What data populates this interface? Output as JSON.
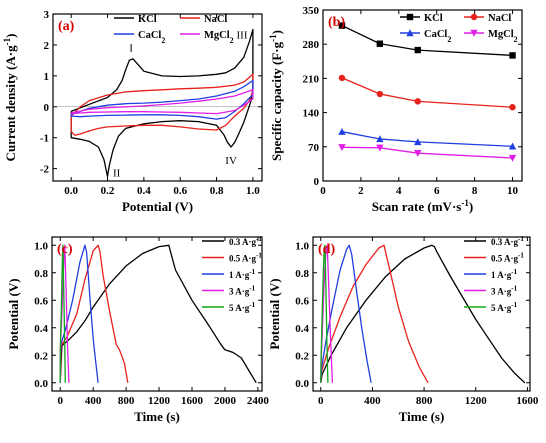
{
  "chart_data": [
    {
      "id": "a",
      "type": "line",
      "panel_label": "(a)",
      "xlabel": "Potential (V)",
      "ylabel": "Current density (A·g",
      "ylabel_sup": "-1",
      "ylabel_close": ")",
      "xlim": [
        -0.1,
        1.05
      ],
      "ylim": [
        -2.4,
        3.0
      ],
      "xticks": [
        0.0,
        0.2,
        0.4,
        0.6,
        0.8,
        1.0
      ],
      "xtick_labels": [
        "0.0",
        "0.2",
        "0.4",
        "0.6",
        "0.8",
        "1.0"
      ],
      "yticks": [
        -2,
        -1,
        0,
        1,
        2,
        3
      ],
      "ytick_labels": [
        "-2",
        "-1",
        "0",
        "1",
        "2",
        "3"
      ],
      "annotations": [
        {
          "text": "I",
          "x": 0.33,
          "y": 1.78
        },
        {
          "text": "II",
          "x": 0.25,
          "y": -2.25
        },
        {
          "text": "III",
          "x": 0.94,
          "y": 2.2
        },
        {
          "text": "IV",
          "x": 0.88,
          "y": -1.85
        }
      ],
      "legend_entries": [
        {
          "label": "KCl",
          "color": "#000000"
        },
        {
          "label": "NaCl",
          "color": "#e8211b"
        },
        {
          "label": "CaCl",
          "sub": "2",
          "color": "#1f3fe0"
        },
        {
          "label": "MgCl",
          "sub": "2",
          "color": "#e11ee6"
        }
      ],
      "series": [
        {
          "name": "KCl",
          "color": "#000000",
          "x": [
            0.0,
            0.1,
            0.2,
            0.25,
            0.28,
            0.3,
            0.32,
            0.34,
            0.36,
            0.4,
            0.5,
            0.6,
            0.7,
            0.8,
            0.85,
            0.9,
            0.95,
            0.98,
            1.0,
            1.0,
            0.99,
            0.97,
            0.95,
            0.92,
            0.9,
            0.88,
            0.86,
            0.84,
            0.8,
            0.7,
            0.6,
            0.5,
            0.4,
            0.3,
            0.26,
            0.23,
            0.21,
            0.2,
            0.18,
            0.15,
            0.1,
            0.05,
            0.0,
            0.0
          ],
          "y": [
            -0.15,
            0.08,
            0.3,
            0.55,
            0.85,
            1.2,
            1.5,
            1.55,
            1.42,
            1.15,
            1.0,
            0.98,
            1.0,
            1.05,
            1.1,
            1.25,
            1.6,
            2.1,
            2.5,
            0.6,
            0.2,
            -0.15,
            -0.5,
            -0.9,
            -1.15,
            -1.3,
            -1.15,
            -0.9,
            -0.6,
            -0.48,
            -0.45,
            -0.48,
            -0.55,
            -0.7,
            -0.95,
            -1.4,
            -1.9,
            -2.25,
            -1.7,
            -1.3,
            -1.12,
            -1.05,
            -1.0,
            -0.15
          ]
        },
        {
          "name": "NaCl",
          "color": "#e8211b",
          "x": [
            0.0,
            0.05,
            0.1,
            0.2,
            0.3,
            0.4,
            0.5,
            0.6,
            0.7,
            0.8,
            0.9,
            0.95,
            0.98,
            1.0,
            1.0,
            0.98,
            0.95,
            0.9,
            0.85,
            0.8,
            0.7,
            0.6,
            0.5,
            0.4,
            0.3,
            0.2,
            0.15,
            0.1,
            0.05,
            0.02,
            0.0,
            0.0
          ],
          "y": [
            -0.3,
            0.0,
            0.2,
            0.38,
            0.48,
            0.52,
            0.55,
            0.58,
            0.6,
            0.63,
            0.7,
            0.8,
            0.95,
            1.05,
            0.5,
            0.2,
            -0.05,
            -0.3,
            -0.6,
            -0.75,
            -0.72,
            -0.65,
            -0.6,
            -0.6,
            -0.62,
            -0.65,
            -0.7,
            -0.78,
            -0.88,
            -0.92,
            -0.8,
            -0.3
          ]
        },
        {
          "name": "CaCl2",
          "color": "#1f3fe0",
          "x": [
            0.0,
            0.1,
            0.2,
            0.3,
            0.4,
            0.5,
            0.6,
            0.7,
            0.8,
            0.9,
            0.95,
            1.0,
            1.0,
            0.95,
            0.9,
            0.85,
            0.8,
            0.7,
            0.6,
            0.5,
            0.4,
            0.3,
            0.2,
            0.1,
            0.05,
            0.0,
            0.0
          ],
          "y": [
            -0.25,
            -0.05,
            0.05,
            0.1,
            0.12,
            0.15,
            0.2,
            0.25,
            0.35,
            0.5,
            0.65,
            0.85,
            0.4,
            0.1,
            -0.15,
            -0.35,
            -0.4,
            -0.32,
            -0.28,
            -0.26,
            -0.26,
            -0.27,
            -0.28,
            -0.3,
            -0.32,
            -0.3,
            -0.25
          ]
        },
        {
          "name": "MgCl2",
          "color": "#e11ee6",
          "x": [
            0.0,
            0.1,
            0.2,
            0.3,
            0.4,
            0.5,
            0.6,
            0.7,
            0.8,
            0.9,
            0.95,
            1.0,
            1.0,
            0.95,
            0.9,
            0.8,
            0.7,
            0.6,
            0.5,
            0.4,
            0.3,
            0.2,
            0.1,
            0.05,
            0.0,
            0.0
          ],
          "y": [
            -0.2,
            -0.08,
            -0.03,
            0.0,
            0.03,
            0.07,
            0.12,
            0.18,
            0.25,
            0.35,
            0.45,
            0.55,
            0.25,
            0.05,
            -0.12,
            -0.22,
            -0.2,
            -0.18,
            -0.17,
            -0.16,
            -0.16,
            -0.17,
            -0.18,
            -0.2,
            -0.22,
            -0.2
          ]
        }
      ]
    },
    {
      "id": "b",
      "type": "line",
      "panel_label": "(b)",
      "xlabel": "Scan rate (mV·s",
      "xlabel_sup": "-1",
      "xlabel_close": ")",
      "ylabel": "Specific capacity (F·g",
      "ylabel_sup": "-1",
      "ylabel_close": ")",
      "xlim": [
        0,
        10.5
      ],
      "ylim": [
        0,
        350
      ],
      "xticks": [
        0,
        2,
        4,
        6,
        8,
        10
      ],
      "xtick_labels": [
        "0",
        "2",
        "4",
        "6",
        "8",
        "10"
      ],
      "yticks": [
        0,
        70,
        140,
        210,
        280,
        350
      ],
      "ytick_labels": [
        "0",
        "70",
        "140",
        "210",
        "280",
        "350"
      ],
      "legend_entries": [
        {
          "label": "KCl",
          "color": "#000000",
          "marker": "square"
        },
        {
          "label": "NaCl",
          "color": "#e8211b",
          "marker": "circle"
        },
        {
          "label": "CaCl",
          "sub": "2",
          "color": "#1f3fe0",
          "marker": "triangle-up"
        },
        {
          "label": "MgCl",
          "sub": "2",
          "color": "#e11ee6",
          "marker": "triangle-down"
        }
      ],
      "series": [
        {
          "name": "KCl",
          "color": "#000000",
          "marker": "square",
          "x": [
            1,
            3,
            5,
            10
          ],
          "y": [
            318,
            281,
            268,
            257
          ]
        },
        {
          "name": "NaCl",
          "color": "#e8211b",
          "marker": "circle",
          "x": [
            1,
            3,
            5,
            10
          ],
          "y": [
            211,
            178,
            163,
            151
          ]
        },
        {
          "name": "CaCl2",
          "color": "#1f3fe0",
          "marker": "triangle-up",
          "x": [
            1,
            3,
            5,
            10
          ],
          "y": [
            101,
            86,
            80,
            71
          ]
        },
        {
          "name": "MgCl2",
          "color": "#e11ee6",
          "marker": "triangle-down",
          "x": [
            1,
            3,
            5,
            10
          ],
          "y": [
            69,
            68,
            57,
            47
          ]
        }
      ]
    },
    {
      "id": "c",
      "type": "line",
      "panel_label": "(c)",
      "xlabel": "Time (s)",
      "ylabel": "Potential (V)",
      "xlim": [
        -100,
        2450
      ],
      "ylim": [
        -0.06,
        1.06
      ],
      "xticks": [
        0,
        400,
        800,
        1200,
        1600,
        2000,
        2400
      ],
      "xtick_labels": [
        "0",
        "400",
        "800",
        "1200",
        "1600",
        "2000",
        "2400"
      ],
      "yticks": [
        0.0,
        0.2,
        0.4,
        0.6,
        0.8,
        1.0
      ],
      "ytick_labels": [
        "0.0",
        "0.2",
        "0.4",
        "0.6",
        "0.8",
        "1.0"
      ],
      "legend_entries": [
        {
          "label": "0.3 A·g",
          "sup": "-1",
          "color": "#000000"
        },
        {
          "label": "0.5 A·g",
          "sup": "-1",
          "color": "#e8211b"
        },
        {
          "label": "1 A·g",
          "sup": "-1",
          "color": "#1f3fe0"
        },
        {
          "label": "3 A·g",
          "sup": "-1",
          "color": "#e11ee6"
        },
        {
          "label": "5 A·g",
          "sup": "-1",
          "color": "#10a51a"
        }
      ],
      "series": [
        {
          "name": "0.3 A·g-1",
          "color": "#000000",
          "x": [
            0,
            20,
            100,
            200,
            300,
            400,
            600,
            800,
            1000,
            1200,
            1320,
            1340,
            1400,
            1600,
            1800,
            1950,
            2000,
            2050,
            2100,
            2200,
            2300,
            2380
          ],
          "y": [
            0.0,
            0.27,
            0.31,
            0.37,
            0.45,
            0.55,
            0.72,
            0.85,
            0.94,
            0.99,
            1.0,
            0.95,
            0.82,
            0.6,
            0.42,
            0.28,
            0.24,
            0.23,
            0.22,
            0.18,
            0.08,
            0.0
          ]
        },
        {
          "name": "0.5 A·g-1",
          "color": "#e8211b",
          "x": [
            0,
            10,
            80,
            200,
            300,
            400,
            460,
            480,
            520,
            600,
            680,
            720,
            780,
            820
          ],
          "y": [
            0.0,
            0.27,
            0.33,
            0.5,
            0.75,
            0.96,
            1.0,
            0.96,
            0.78,
            0.52,
            0.28,
            0.24,
            0.14,
            0.0
          ]
        },
        {
          "name": "1 A·g-1",
          "color": "#1f3fe0",
          "x": [
            0,
            5,
            60,
            150,
            240,
            300,
            320,
            360,
            400,
            430,
            460
          ],
          "y": [
            0.0,
            0.27,
            0.38,
            0.6,
            0.88,
            1.0,
            0.95,
            0.62,
            0.32,
            0.16,
            0.0
          ]
        },
        {
          "name": "3 A·g-1",
          "color": "#e11ee6",
          "x": [
            0,
            3,
            20,
            45,
            55,
            70,
            90,
            105
          ],
          "y": [
            0.0,
            0.27,
            0.5,
            0.9,
            1.0,
            0.7,
            0.25,
            0.0
          ]
        },
        {
          "name": "5 A·g-1",
          "color": "#10a51a",
          "x": [
            0,
            2,
            12,
            26,
            32,
            42,
            55,
            62
          ],
          "y": [
            0.0,
            0.27,
            0.5,
            0.9,
            1.0,
            0.7,
            0.25,
            0.0
          ]
        }
      ]
    },
    {
      "id": "d",
      "type": "line",
      "panel_label": "(d)",
      "xlabel": "Time (s)",
      "ylabel": "Potential (V)",
      "xlim": [
        -60,
        1620
      ],
      "ylim": [
        -0.06,
        1.06
      ],
      "xticks": [
        0,
        400,
        800,
        1200,
        1600
      ],
      "xtick_labels": [
        "0",
        "400",
        "800",
        "1200",
        "1600"
      ],
      "yticks": [
        0.0,
        0.2,
        0.4,
        0.6,
        0.8,
        1.0
      ],
      "ytick_labels": [
        "0.0",
        "0.2",
        "0.4",
        "0.6",
        "0.8",
        "1.0"
      ],
      "legend_entries": [
        {
          "label": "0.3 A·g",
          "sup": "-1",
          "color": "#000000"
        },
        {
          "label": "0.5 A·g",
          "sup": "-1",
          "color": "#e8211b"
        },
        {
          "label": "1 A·g",
          "sup": "-1",
          "color": "#1f3fe0"
        },
        {
          "label": "3 A·g",
          "sup": "-1",
          "color": "#e11ee6"
        },
        {
          "label": "5 A·g",
          "sup": "-1",
          "color": "#10a51a"
        }
      ],
      "series": [
        {
          "name": "0.3 A·g-1",
          "color": "#000000",
          "x": [
            0,
            10,
            80,
            200,
            350,
            500,
            650,
            800,
            860,
            880,
            900,
            1000,
            1100,
            1200,
            1300,
            1400,
            1500,
            1580
          ],
          "y": [
            0.0,
            0.06,
            0.2,
            0.4,
            0.6,
            0.77,
            0.9,
            0.98,
            1.0,
            0.99,
            0.95,
            0.78,
            0.62,
            0.46,
            0.32,
            0.18,
            0.07,
            0.0
          ]
        },
        {
          "name": "0.5 A·g-1",
          "color": "#e8211b",
          "x": [
            0,
            5,
            60,
            150,
            250,
            350,
            450,
            490,
            500,
            540,
            600,
            680,
            760,
            830
          ],
          "y": [
            0.0,
            0.08,
            0.25,
            0.48,
            0.7,
            0.86,
            0.98,
            1.0,
            0.96,
            0.8,
            0.55,
            0.3,
            0.12,
            0.0
          ]
        },
        {
          "name": "1 A·g-1",
          "color": "#1f3fe0",
          "x": [
            0,
            5,
            40,
            90,
            150,
            200,
            220,
            240,
            280,
            320,
            360,
            390
          ],
          "y": [
            0.0,
            0.1,
            0.3,
            0.55,
            0.82,
            0.97,
            1.0,
            0.93,
            0.65,
            0.38,
            0.15,
            0.0
          ]
        },
        {
          "name": "3 A·g-1",
          "color": "#e11ee6",
          "x": [
            0,
            3,
            15,
            30,
            42,
            50,
            60,
            75,
            90
          ],
          "y": [
            0.0,
            0.15,
            0.45,
            0.8,
            0.98,
            1.0,
            0.75,
            0.35,
            0.0
          ]
        },
        {
          "name": "5 A·g-1",
          "color": "#10a51a",
          "x": [
            0,
            2,
            10,
            20,
            27,
            32,
            40,
            48,
            55
          ],
          "y": [
            0.0,
            0.15,
            0.45,
            0.8,
            0.98,
            1.0,
            0.7,
            0.3,
            0.0
          ]
        }
      ]
    }
  ]
}
